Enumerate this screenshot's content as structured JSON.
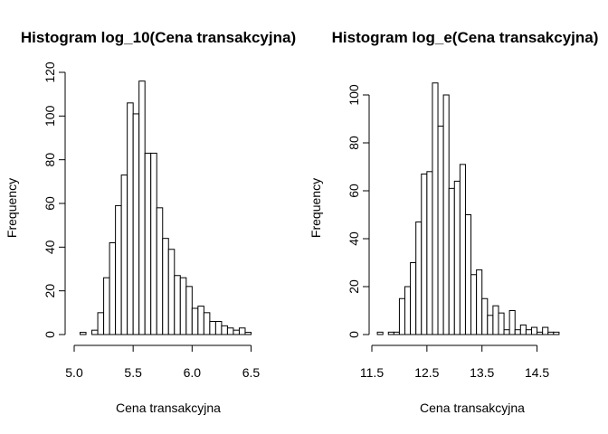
{
  "chart_data": [
    {
      "type": "bar",
      "title": "Histogram log_10(Cena transakcyjna)",
      "xlabel": "Cena transakcyjna",
      "ylabel": "Frequency",
      "xlim": [
        5.0,
        6.55
      ],
      "ylim": [
        0,
        120
      ],
      "bin_width": 0.05,
      "bin_start": 5.05,
      "values": [
        1,
        0,
        2,
        10,
        26,
        42,
        59,
        73,
        106,
        101,
        116,
        83,
        83,
        58,
        44,
        39,
        27,
        26,
        22,
        12,
        13,
        10,
        6,
        6,
        4,
        3,
        2,
        3,
        1
      ],
      "x_ticks": [
        "5.0",
        "5.5",
        "6.0",
        "6.5"
      ],
      "x_tick_values": [
        5.0,
        5.5,
        6.0,
        6.5
      ],
      "y_ticks": [
        "0",
        "20",
        "40",
        "60",
        "80",
        "100",
        "120"
      ],
      "y_tick_values": [
        0,
        20,
        40,
        60,
        80,
        100,
        120
      ],
      "grid": false
    },
    {
      "type": "bar",
      "title": "Histogram log_e(Cena transakcyjna)",
      "xlabel": "Cena transakcyjna",
      "ylabel": "Frequency",
      "xlim": [
        11.5,
        15.0
      ],
      "ylim": [
        0,
        105
      ],
      "bin_width": 0.1,
      "bin_start": 11.6,
      "values": [
        1,
        0,
        1,
        1,
        15,
        20,
        30,
        47,
        67,
        68,
        105,
        87,
        100,
        61,
        64,
        71,
        50,
        25,
        27,
        15,
        8,
        12,
        9,
        2,
        10,
        2,
        4,
        2,
        3,
        1,
        3,
        1,
        1
      ],
      "x_ticks": [
        "11.5",
        "12.5",
        "13.5",
        "14.5"
      ],
      "x_tick_values": [
        11.5,
        12.5,
        13.5,
        14.5
      ],
      "y_ticks": [
        "0",
        "20",
        "40",
        "60",
        "80",
        "100"
      ],
      "y_tick_values": [
        0,
        20,
        40,
        60,
        80,
        100
      ],
      "grid": false
    }
  ]
}
